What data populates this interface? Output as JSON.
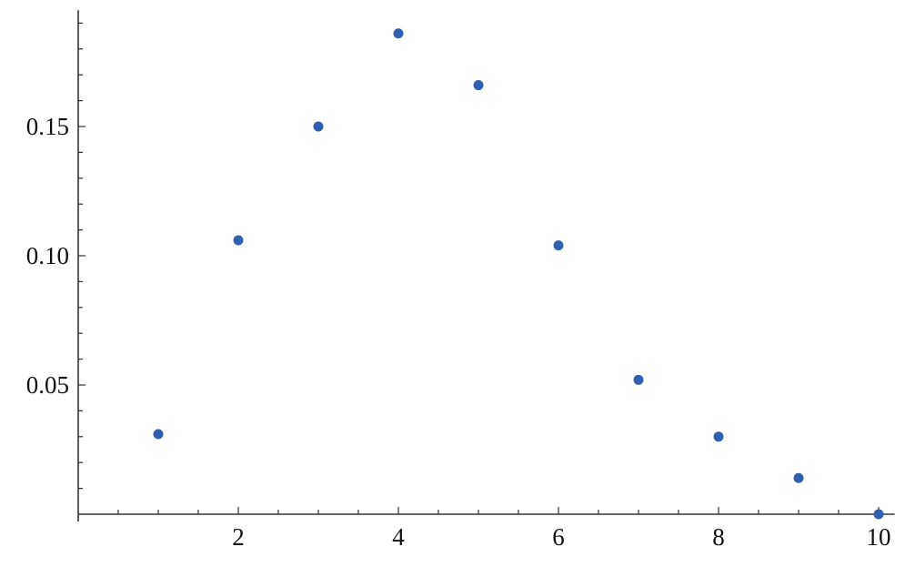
{
  "chart_data": {
    "type": "scatter",
    "title": "",
    "xlabel": "",
    "ylabel": "",
    "x": [
      1,
      2,
      3,
      4,
      5,
      6,
      7,
      8,
      9,
      10
    ],
    "y": [
      0.031,
      0.106,
      0.15,
      0.186,
      0.166,
      0.104,
      0.052,
      0.03,
      0.014,
      0.0
    ],
    "xlim": [
      0,
      10.2
    ],
    "ylim": [
      0,
      0.195
    ],
    "x_ticks": [
      2,
      4,
      6,
      8,
      10
    ],
    "x_tick_labels": [
      "2",
      "4",
      "6",
      "8",
      "10"
    ],
    "y_ticks": [
      0.05,
      0.1,
      0.15
    ],
    "y_tick_labels": [
      "0.05",
      "0.10",
      "0.15"
    ],
    "grid": false,
    "legend": "none",
    "point_color": "#3060b0",
    "axis_color": "#333333"
  }
}
